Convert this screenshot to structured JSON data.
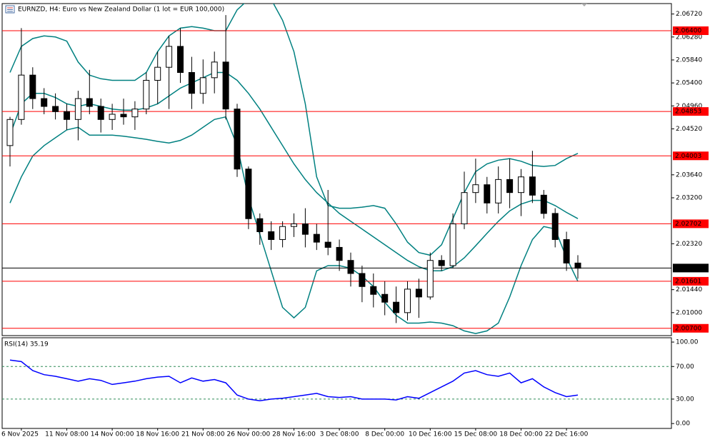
{
  "chart_data": [
    {
      "type": "candlestick",
      "title": "EURNZD, H4:  Euro vs New Zealand Dollar (1 lot = EUR 100,000)",
      "categories": [
        null,
        "6 Nov 2025",
        null,
        null,
        null,
        "11 Nov 08:00",
        null,
        null,
        null,
        "14 Nov 00:00",
        null,
        null,
        null,
        "18 Nov 16:00",
        null,
        null,
        null,
        "21 Nov 08:00",
        null,
        null,
        null,
        "26 Nov 00:00",
        null,
        null,
        null,
        "28 Nov 16:00",
        null,
        null,
        null,
        "3 Dec 08:00",
        null,
        null,
        null,
        "8 Dec 00:00",
        null,
        null,
        null,
        "10 Dec 16:00",
        null,
        null,
        null,
        "15 Dec 08:00",
        null,
        null,
        null,
        "18 Dec 00:00",
        null,
        null,
        null,
        "22 Dec 16:00",
        null
      ],
      "open": [
        2.042,
        2.047,
        2.0555,
        2.051,
        2.0495,
        2.0485,
        2.047,
        2.051,
        2.0495,
        2.047,
        2.048,
        2.0475,
        2.049,
        2.0545,
        2.057,
        2.061,
        2.056,
        2.052,
        2.055,
        2.058,
        2.049,
        2.0375,
        2.028,
        2.0255,
        2.024,
        2.0265,
        2.027,
        2.025,
        2.0235,
        2.0225,
        2.02,
        2.0175,
        2.015,
        2.0135,
        2.012,
        2.01,
        2.0145,
        2.013,
        2.02,
        2.019,
        2.027,
        2.033,
        2.0345,
        2.031,
        2.0355,
        2.033,
        2.036,
        2.0325,
        2.029,
        2.024,
        2.0195
      ],
      "high": [
        2.0475,
        2.0645,
        2.057,
        2.053,
        2.052,
        2.05,
        2.0525,
        2.0565,
        2.051,
        2.05,
        2.051,
        2.0505,
        2.056,
        2.06,
        2.063,
        2.0645,
        2.059,
        2.0585,
        2.06,
        2.067,
        2.05,
        2.038,
        2.029,
        2.0275,
        2.0275,
        2.029,
        2.03,
        2.027,
        2.0335,
        2.024,
        2.0215,
        2.019,
        2.0175,
        2.016,
        2.015,
        2.016,
        2.0165,
        2.0215,
        2.021,
        2.029,
        2.037,
        2.0395,
        2.036,
        2.038,
        2.0395,
        2.0375,
        2.041,
        2.0335,
        2.03,
        2.0255,
        2.021
      ],
      "low": [
        2.038,
        2.046,
        2.049,
        2.048,
        2.047,
        2.045,
        2.043,
        2.048,
        2.0445,
        2.045,
        2.046,
        2.045,
        2.048,
        2.05,
        2.049,
        2.054,
        2.049,
        2.05,
        2.052,
        2.047,
        2.036,
        2.026,
        2.023,
        2.022,
        2.0225,
        2.0245,
        2.0225,
        2.022,
        2.021,
        2.018,
        2.015,
        2.012,
        2.011,
        2.0095,
        2.008,
        2.0085,
        2.009,
        2.0125,
        2.018,
        2.0185,
        2.026,
        2.031,
        2.029,
        2.029,
        2.03,
        2.0285,
        2.031,
        2.028,
        2.0225,
        2.018,
        2.0165
      ],
      "close": [
        2.047,
        2.0555,
        2.051,
        2.0495,
        2.0485,
        2.047,
        2.051,
        2.0495,
        2.047,
        2.048,
        2.0475,
        2.049,
        2.0545,
        2.057,
        2.061,
        2.056,
        2.052,
        2.055,
        2.058,
        2.049,
        2.0375,
        2.028,
        2.0255,
        2.024,
        2.0265,
        2.027,
        2.025,
        2.0235,
        2.0225,
        2.02,
        2.0175,
        2.015,
        2.0135,
        2.012,
        2.01,
        2.0145,
        2.013,
        2.02,
        2.019,
        2.027,
        2.033,
        2.0345,
        2.031,
        2.0355,
        2.033,
        2.036,
        2.0325,
        2.029,
        2.024,
        2.0195,
        2.0185
      ],
      "up_color": "#ffffff",
      "down_color": "#000000",
      "bands": {
        "color": "#008080",
        "upper": [
          2.056,
          2.061,
          2.0625,
          2.063,
          2.0628,
          2.062,
          2.058,
          2.0555,
          2.0548,
          2.0545,
          2.0545,
          2.0545,
          2.056,
          2.06,
          2.063,
          2.0645,
          2.0648,
          2.0645,
          2.064,
          2.064,
          2.068,
          2.07,
          2.071,
          2.07,
          2.066,
          2.06,
          2.05,
          2.036,
          2.0305,
          2.03,
          2.03,
          2.0302,
          2.0305,
          2.03,
          2.027,
          2.0235,
          2.0215,
          2.021,
          2.023,
          2.028,
          2.033,
          2.037,
          2.0385,
          2.0392,
          2.0395,
          2.039,
          2.0382,
          2.038,
          2.0382,
          2.0395,
          2.0405
        ],
        "middle": [
          2.044,
          2.05,
          2.052,
          2.052,
          2.0512,
          2.05,
          2.0495,
          2.05,
          2.0495,
          2.049,
          2.0488,
          2.0488,
          2.0492,
          2.05,
          2.0515,
          2.053,
          2.054,
          2.055,
          2.056,
          2.056,
          2.0545,
          2.052,
          2.049,
          2.0455,
          2.042,
          2.0385,
          2.0355,
          2.033,
          2.031,
          2.029,
          2.0275,
          2.026,
          2.0245,
          2.023,
          2.0215,
          2.02,
          2.0188,
          2.018,
          2.018,
          2.0188,
          2.0205,
          2.0228,
          2.0252,
          2.0275,
          2.0295,
          2.0308,
          2.0315,
          2.0315,
          2.0305,
          2.0292,
          2.028
        ],
        "lower": [
          2.031,
          2.036,
          2.04,
          2.042,
          2.0435,
          2.045,
          2.0455,
          2.044,
          2.044,
          2.044,
          2.0438,
          2.0435,
          2.0432,
          2.0428,
          2.0425,
          2.043,
          2.044,
          2.0455,
          2.047,
          2.0475,
          2.042,
          2.032,
          2.025,
          2.018,
          2.011,
          2.009,
          2.011,
          2.018,
          2.019,
          2.019,
          2.0185,
          2.017,
          2.015,
          2.012,
          2.0095,
          2.008,
          2.008,
          2.0082,
          2.008,
          2.0075,
          2.0065,
          2.006,
          2.0065,
          2.008,
          2.013,
          2.019,
          2.024,
          2.0265,
          2.026,
          2.0205,
          2.016
        ]
      },
      "levels": [
        {
          "value": 2.064,
          "label": "2.06400"
        },
        {
          "value": 2.04853,
          "label": "2.04853"
        },
        {
          "value": 2.04003,
          "label": "2.04003"
        },
        {
          "value": 2.02702,
          "label": "2.02702"
        },
        {
          "value": 2.01601,
          "label": "2.01601"
        },
        {
          "value": 2.007,
          "label": "2.00700"
        }
      ],
      "level_color": "#ff0000",
      "price_line": {
        "value": 2.01854,
        "label": "2.01854",
        "color": "#000000"
      },
      "ylim": [
        2.0056,
        2.0692
      ],
      "yticks": [
        {
          "value": 2.0672,
          "label": "2.06720"
        },
        {
          "value": 2.0628,
          "label": "2.06280"
        },
        {
          "value": 2.0584,
          "label": "2.05840"
        },
        {
          "value": 2.054,
          "label": "2.05400"
        },
        {
          "value": 2.0496,
          "label": "2.04960"
        },
        {
          "value": 2.0452,
          "label": "2.04520"
        },
        {
          "value": 2.0364,
          "label": "2.03640"
        },
        {
          "value": 2.032,
          "label": "2.03200"
        },
        {
          "value": 2.0232,
          "label": "2.02320"
        },
        {
          "value": 2.0144,
          "label": "2.01440"
        },
        {
          "value": 2.01,
          "label": "2.01000"
        }
      ],
      "grid": false
    },
    {
      "type": "line",
      "title": "RSI(14) 35.19",
      "values": [
        78,
        76,
        65,
        60,
        58,
        55,
        52,
        55,
        53,
        48,
        50,
        52,
        55,
        57,
        58,
        50,
        56,
        52,
        54,
        50,
        35,
        30,
        28,
        30,
        31,
        33,
        35,
        37,
        33,
        32,
        33,
        30,
        30,
        30,
        29,
        33,
        31,
        38,
        45,
        52,
        62,
        65,
        60,
        58,
        62,
        50,
        55,
        45,
        38,
        33,
        35
      ],
      "color": "#0000ff",
      "levels": [
        70,
        30
      ],
      "level_color": "#2e8b57",
      "ylim": [
        -6,
        105.3
      ],
      "yticks": [
        {
          "value": 100,
          "label": "100.00"
        },
        {
          "value": 70,
          "label": "70.00"
        },
        {
          "value": 30,
          "label": "30.00"
        },
        {
          "value": 0,
          "label": "0.00"
        }
      ],
      "grid": false
    }
  ]
}
